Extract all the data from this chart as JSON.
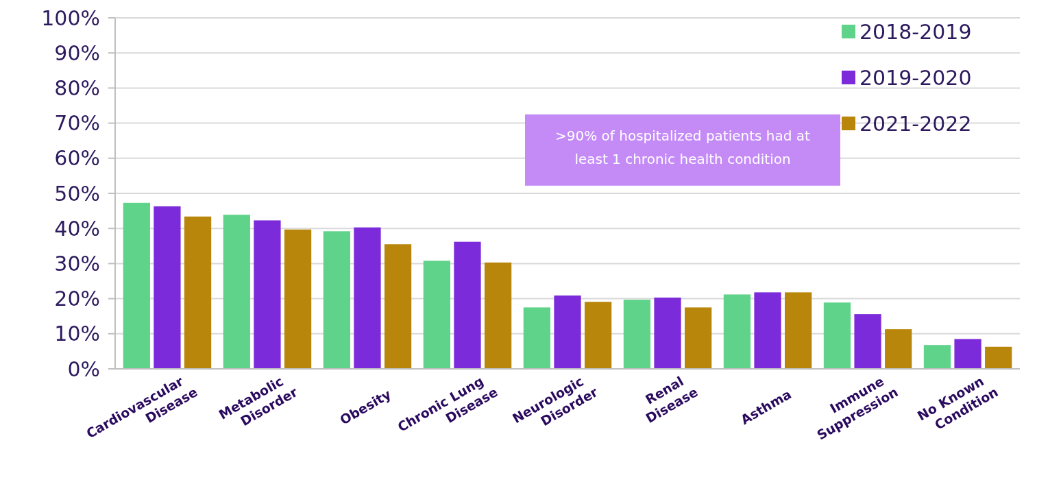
{
  "chart_data": {
    "type": "bar",
    "categories": [
      "Cardiovascular Disease",
      "Metabolic Disorder",
      "Obesity",
      "Chronic Lung Disease",
      "Neurologic Disorder",
      "Renal Disease",
      "Asthma",
      "Immune Suppression",
      "No Known Condition"
    ],
    "series": [
      {
        "name": "2018-2019",
        "color": "#5fd38a",
        "values": [
          47.3,
          43.9,
          39.2,
          30.8,
          17.5,
          19.7,
          21.2,
          18.9,
          6.8
        ]
      },
      {
        "name": "2019-2020",
        "color": "#7b2bd9",
        "values": [
          46.3,
          42.3,
          40.3,
          36.2,
          20.9,
          20.3,
          21.8,
          15.6,
          8.5
        ]
      },
      {
        "name": "2021-2022",
        "color": "#b8860b",
        "values": [
          43.4,
          39.7,
          35.5,
          30.3,
          19.1,
          17.5,
          21.8,
          11.3,
          6.3
        ]
      }
    ],
    "ylim": [
      0,
      100
    ],
    "yticks": [
      {
        "value": 0,
        "label": "0%"
      },
      {
        "value": 10,
        "label": "10%"
      },
      {
        "value": 20,
        "label": "20%"
      },
      {
        "value": 30,
        "label": "30%"
      },
      {
        "value": 40,
        "label": "40%"
      },
      {
        "value": 50,
        "label": "50%"
      },
      {
        "value": 60,
        "label": "60%"
      },
      {
        "value": 70,
        "label": "70%"
      },
      {
        "value": 80,
        "label": "80%"
      },
      {
        "value": 90,
        "label": "90%"
      },
      {
        "value": 100,
        "label": "100%"
      }
    ],
    "grid": "y",
    "legend": "top right",
    "annotations": [
      ">90% of hospitalized patients had at least 1 chronic health condition"
    ]
  }
}
